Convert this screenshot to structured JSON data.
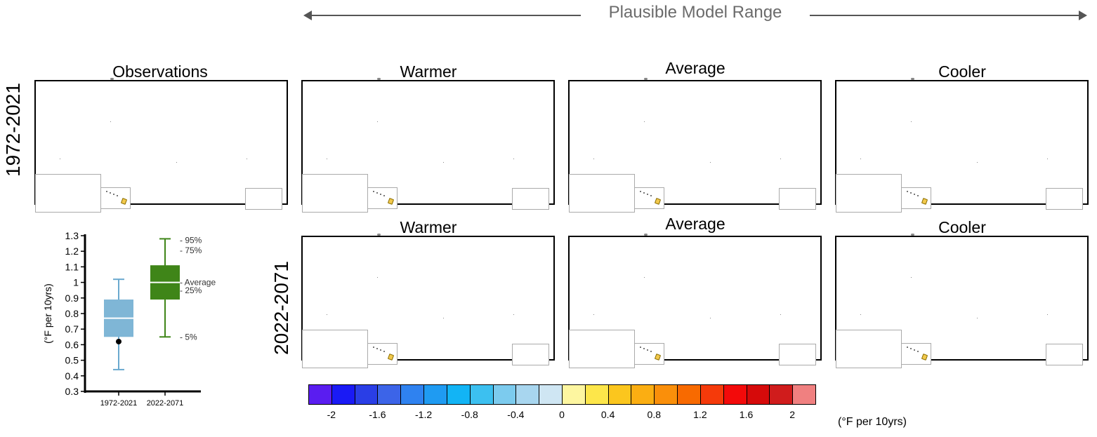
{
  "header": {
    "range_label": "Plausible Model Range"
  },
  "row_labels": {
    "top": "1972-2021",
    "bottom": "2022-2071"
  },
  "panels": {
    "top": [
      "Observations",
      "Warmer",
      "Average",
      "Cooler"
    ],
    "bottom": [
      "Warmer",
      "Average",
      "Cooler"
    ]
  },
  "colorbar": {
    "colors": [
      "#5a1df0",
      "#1a1af5",
      "#2a3ee6",
      "#3c64e8",
      "#2f82f0",
      "#1f9bf2",
      "#12b4f5",
      "#3cc0f0",
      "#7ccbee",
      "#a8d6ef",
      "#cfe6f3",
      "#fdf6a0",
      "#fde64a",
      "#fbc61e",
      "#fbae12",
      "#fa8f0a",
      "#f86a00",
      "#f53a0a",
      "#f30a0a",
      "#d60a0a",
      "#d01c1c",
      "#f08080"
    ],
    "tick_labels": [
      "-2",
      "-1.6",
      "-1.2",
      "-0.8",
      "-0.4",
      "0",
      "0.4",
      "0.8",
      "1.2",
      "1.6",
      "2"
    ],
    "unit_label": "(°F per 10yrs)"
  },
  "chart_data": {
    "type": "box",
    "ylabel": "(°F per 10yrs)",
    "ylim": [
      0.3,
      1.3
    ],
    "yticks": [
      "0.3",
      "0.4",
      "0.5",
      "0.6",
      "0.7",
      "0.8",
      "0.9",
      "1",
      "1.1",
      "1.2",
      "1.3"
    ],
    "categories": [
      "1972-2021",
      "2022-2071"
    ],
    "boxes": [
      {
        "category": "1972-2021",
        "color": "#7fb6d6",
        "whisker_color": "#6aa9cf",
        "p5": 0.44,
        "p25": 0.65,
        "avg": 0.77,
        "p75": 0.89,
        "p95": 1.02,
        "observed": 0.62
      },
      {
        "category": "2022-2071",
        "color": "#3f8518",
        "whisker_color": "#3f8518",
        "p5": 0.65,
        "p25": 0.89,
        "avg": 1.0,
        "p75": 1.11,
        "p95": 1.28
      }
    ],
    "percentile_labels": {
      "p95": "- 95%",
      "p75": "- 75%",
      "avg": "- Average",
      "p25": "- 25%",
      "p5": "- 5%"
    }
  }
}
